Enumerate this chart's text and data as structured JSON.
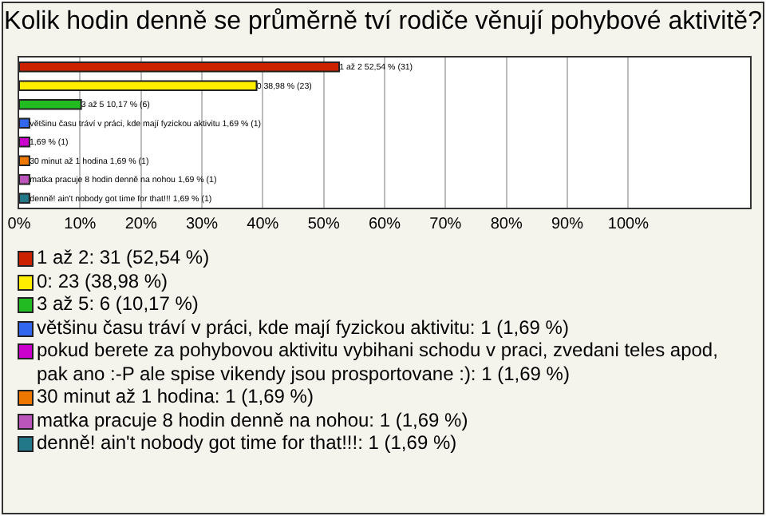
{
  "chart_data": {
    "type": "bar",
    "orientation": "horizontal",
    "title": "Kolik hodin denně se průměrně tví rodiče věnují pohybové aktivitě?",
    "categories": [
      null,
      null,
      null,
      null,
      null,
      null,
      null,
      null
    ],
    "xlim": [
      0,
      120
    ],
    "xticks": [
      {
        "value": 0,
        "label": "0%"
      },
      {
        "value": 10,
        "label": "10%"
      },
      {
        "value": 20,
        "label": "20%"
      },
      {
        "value": 30,
        "label": "30%"
      },
      {
        "value": 40,
        "label": "40%"
      },
      {
        "value": 50,
        "label": "50%"
      },
      {
        "value": 60,
        "label": "60%"
      },
      {
        "value": 70,
        "label": "70%"
      },
      {
        "value": 80,
        "label": "80%"
      },
      {
        "value": 90,
        "label": "90%"
      },
      {
        "value": 100,
        "label": "100%"
      }
    ],
    "grid": "x",
    "legend": "bottom",
    "tick_labels": "x",
    "series": [
      {
        "name": "1 až 2: 31 (52,54 %)",
        "color": "#cc2200",
        "values": [
          52.54,
          null,
          null,
          null,
          null,
          null,
          null,
          null
        ],
        "value_labels": [
          "1 až 2 52,54 % (31)",
          null,
          null,
          null,
          null,
          null,
          null,
          null
        ]
      },
      {
        "name": "0: 23 (38,98 %)",
        "color": "#ffee00",
        "values": [
          null,
          38.98,
          null,
          null,
          null,
          null,
          null,
          null
        ],
        "value_labels": [
          null,
          "0 38,98 % (23)",
          null,
          null,
          null,
          null,
          null,
          null
        ]
      },
      {
        "name": "3 až 5: 6 (10,17 %)",
        "color": "#22bb22",
        "values": [
          null,
          null,
          10.17,
          null,
          null,
          null,
          null,
          null
        ],
        "value_labels": [
          null,
          null,
          "3 až 5 10,17 % (6)",
          null,
          null,
          null,
          null,
          null
        ]
      },
      {
        "name": "většinu času tráví v práci, kde mají fyzickou aktivitu: 1 (1,69 %)",
        "color": "#3366ee",
        "values": [
          null,
          null,
          null,
          1.69,
          null,
          null,
          null,
          null
        ],
        "value_labels": [
          null,
          null,
          null,
          "většinu času tráví v práci, kde mají fyzickou aktivitu 1,69 % (1)",
          null,
          null,
          null,
          null
        ]
      },
      {
        "name": "pokud berete za pohybovou aktivitu vybihani schodu v praci, zvedani teles apod, pak ano :-P ale spise vikendy jsou prosportovane :): 1 (1,69 %)",
        "color": "#cc00cc",
        "values": [
          null,
          null,
          null,
          null,
          1.69,
          null,
          null,
          null
        ],
        "value_labels": [
          null,
          null,
          null,
          null,
          "1,69 % (1)",
          null,
          null,
          null
        ]
      },
      {
        "name": "30 minut až 1 hodina: 1 (1,69 %)",
        "color": "#ee7700",
        "values": [
          null,
          null,
          null,
          null,
          null,
          1.69,
          null,
          null
        ],
        "value_labels": [
          null,
          null,
          null,
          null,
          null,
          "30 minut až 1 hodina 1,69 % (1)",
          null,
          null
        ]
      },
      {
        "name": "matka pracuje 8 hodin denně na nohou: 1 (1,69 %)",
        "color": "#bb55bb",
        "values": [
          null,
          null,
          null,
          null,
          null,
          null,
          1.69,
          null
        ],
        "value_labels": [
          null,
          null,
          null,
          null,
          null,
          null,
          "matka pracuje 8 hodin denně na nohou 1,69 % (1)",
          null
        ]
      },
      {
        "name": "denně! ain't nobody got time for that!!!: 1 (1,69 %)",
        "color": "#227788",
        "values": [
          null,
          null,
          null,
          null,
          null,
          null,
          null,
          1.69
        ],
        "value_labels": [
          null,
          null,
          null,
          null,
          null,
          null,
          null,
          "denně! ain't nobody got time for that!!! 1,69 % (1)"
        ]
      }
    ]
  }
}
